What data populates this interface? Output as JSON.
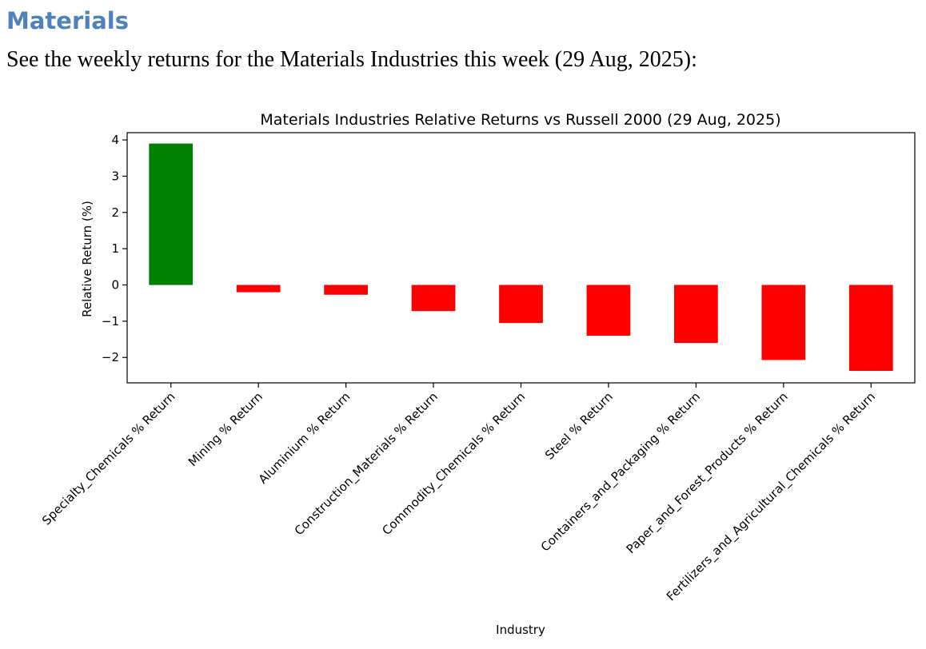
{
  "page": {
    "heading": "Materials",
    "intro": "See the weekly returns for the Materials Industries this week (29 Aug, 2025):"
  },
  "chart_data": {
    "type": "bar",
    "title": "Materials Industries Relative Returns vs Russell 2000 (29 Aug, 2025)",
    "xlabel": "Industry",
    "ylabel": "Relative Return (%)",
    "ylim": [
      -2.7,
      4.2
    ],
    "yticks": [
      4,
      3,
      2,
      1,
      0,
      -1,
      -2
    ],
    "ytick_labels": [
      "4",
      "3",
      "2",
      "1",
      "0",
      "−1",
      "−2"
    ],
    "categories": [
      "Specialty_Chemicals % Return",
      "Mining % Return",
      "Aluminium % Return",
      "Construction_Materials % Return",
      "Commodity_Chemicals % Return",
      "Steel % Return",
      "Containers_and_Packaging % Return",
      "Paper_and_Forest_Products % Return",
      "Fertilizers_and_Agricultural_Chemicals % Return"
    ],
    "values": [
      3.9,
      -0.2,
      -0.27,
      -0.72,
      -1.05,
      -1.4,
      -1.6,
      -2.07,
      -2.37
    ],
    "colors": {
      "positive": "#008000",
      "negative": "#ff0000",
      "axis": "#000000"
    },
    "grid": false,
    "legend": "none"
  }
}
